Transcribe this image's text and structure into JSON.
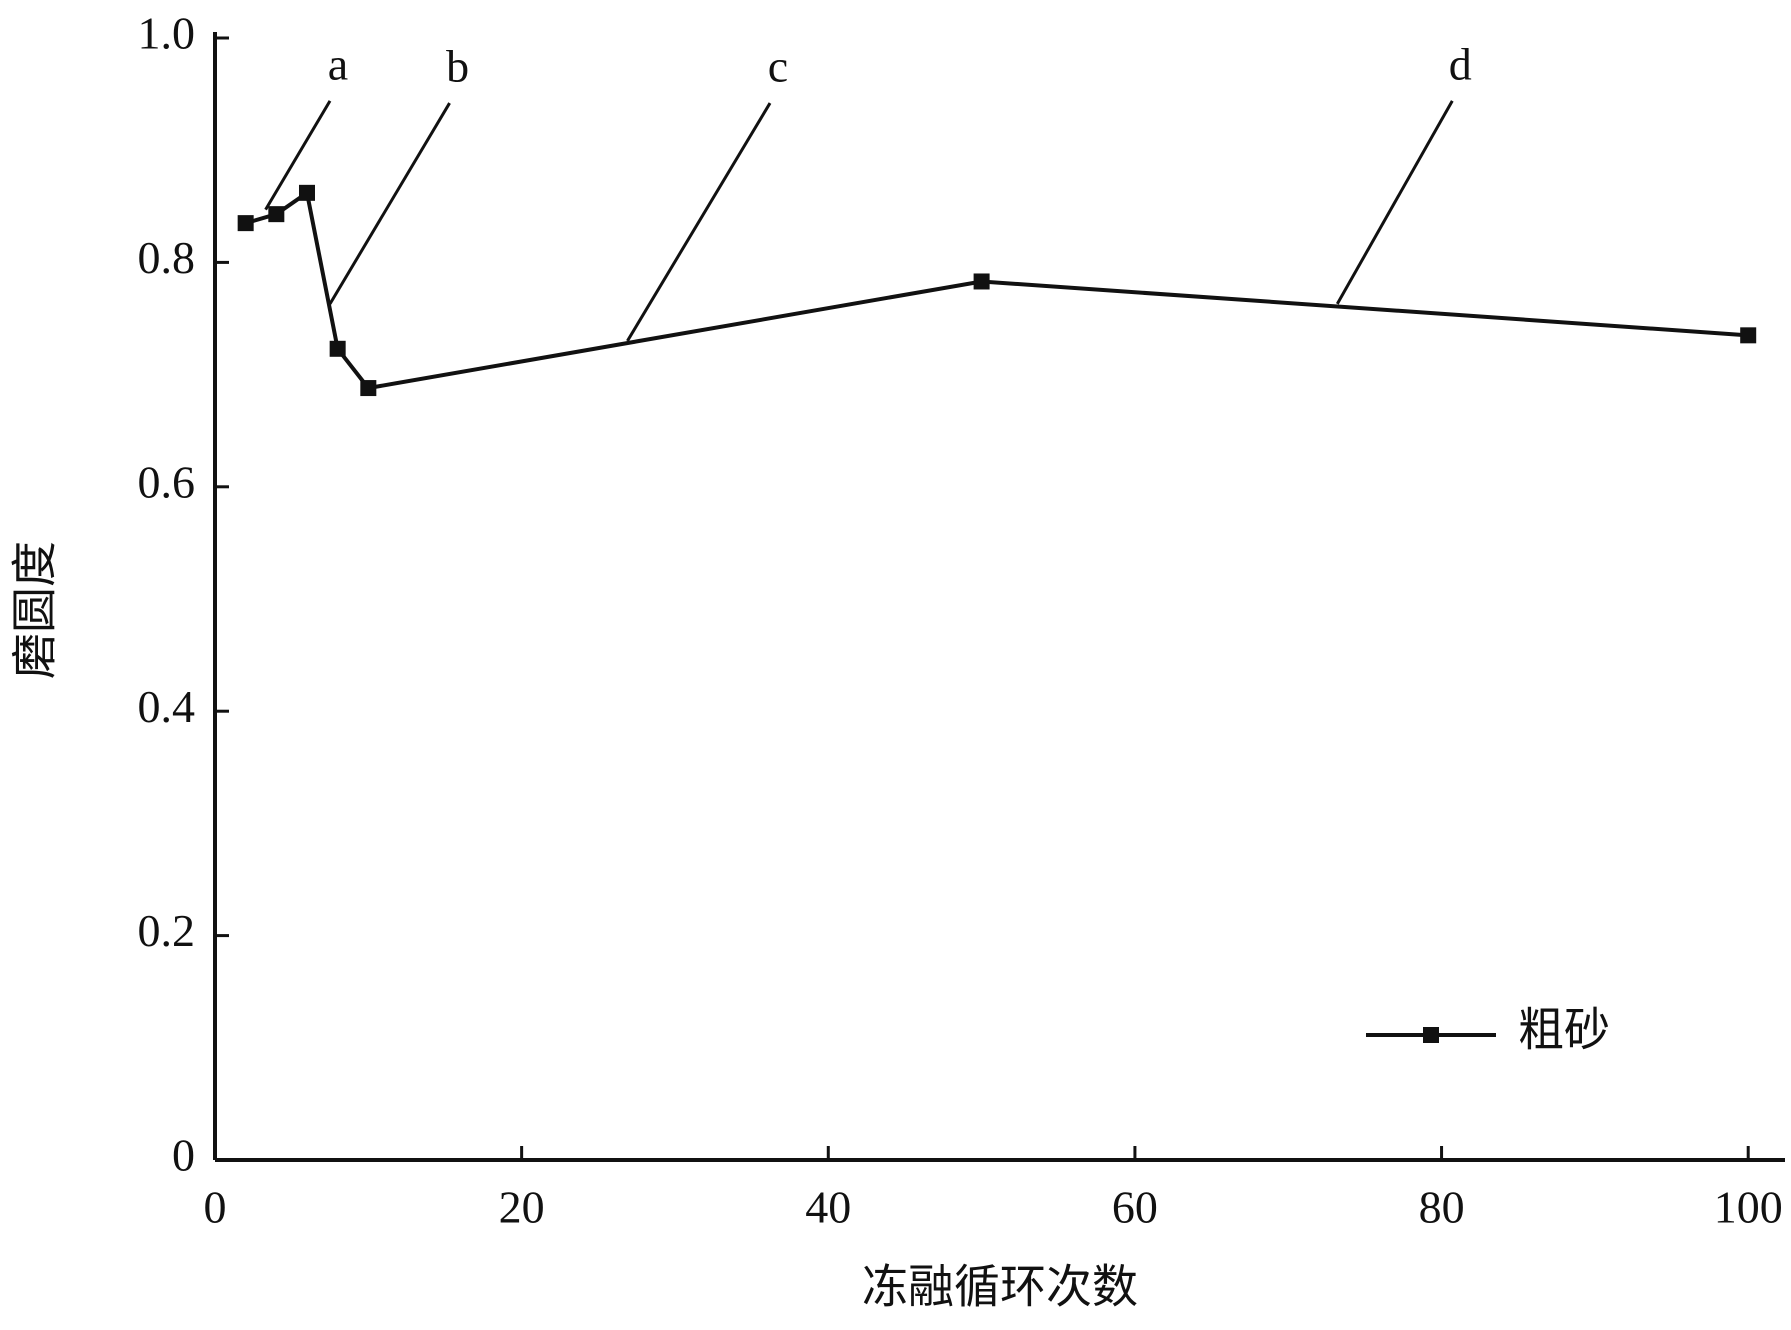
{
  "chart_data": {
    "type": "line",
    "x_label": "冻融循环次数",
    "y_label": "磨圆度",
    "x": [
      2,
      4,
      6,
      8,
      10,
      50,
      100
    ],
    "series": [
      {
        "name": "粗砂",
        "color": "#111111",
        "values": [
          0.835,
          0.843,
          0.862,
          0.723,
          0.688,
          0.783,
          0.735
        ]
      }
    ],
    "xlim": [
      0,
      102.4
    ],
    "ylim": [
      0,
      1
    ],
    "xticks": [
      0,
      20,
      40,
      60,
      80,
      100
    ],
    "yticks": [
      0,
      0.2,
      0.4,
      0.6,
      0.8,
      {
        "value": 1,
        "label": "1.0"
      }
    ],
    "annotations": [
      "a",
      "b",
      "c",
      "d"
    ],
    "legend": "lower right",
    "grid": false
  }
}
